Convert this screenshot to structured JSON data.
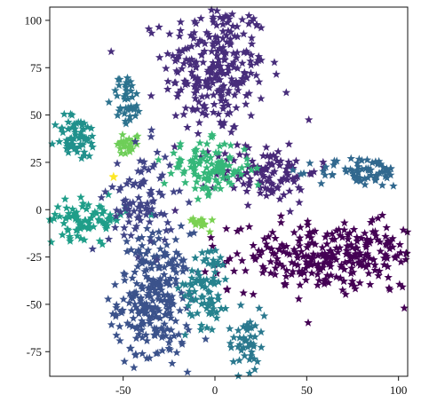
{
  "chart_data": {
    "type": "scatter",
    "title": "",
    "xlabel": "",
    "ylabel": "",
    "xlim": [
      -90,
      105
    ],
    "ylim": [
      -88,
      107
    ],
    "x_ticks": [
      -50,
      0,
      50,
      100
    ],
    "y_ticks": [
      100,
      75,
      50,
      25,
      0,
      -25,
      -50,
      -75
    ],
    "x_tick_labels": [
      "-50",
      "0",
      "50",
      "100"
    ],
    "y_tick_labels": [
      "100",
      "75",
      "50",
      "25",
      "0",
      "-25",
      "-50",
      "-75"
    ],
    "grid": false,
    "legend": "none",
    "marker": "star",
    "series": [
      {
        "color": "#472d7b",
        "center": [
          0,
          75
        ],
        "spread": [
          14,
          18
        ],
        "n": 260
      },
      {
        "color": "#3b528b",
        "center": [
          -33,
          -48
        ],
        "spread": [
          10,
          18
        ],
        "n": 260
      },
      {
        "color": "#440154",
        "center": [
          65,
          -25
        ],
        "spread": [
          28,
          9
        ],
        "n": 300
      },
      {
        "color": "#482878",
        "center": [
          28,
          20
        ],
        "spread": [
          14,
          8
        ],
        "n": 110
      },
      {
        "color": "#31688e",
        "center": [
          80,
          20
        ],
        "spread": [
          12,
          4
        ],
        "n": 70
      },
      {
        "color": "#21918c",
        "center": [
          -75,
          38
        ],
        "spread": [
          6,
          6
        ],
        "n": 60
      },
      {
        "color": "#2c728e",
        "center": [
          -48,
          58
        ],
        "spread": [
          4,
          7
        ],
        "n": 40
      },
      {
        "color": "#26828e",
        "center": [
          -4,
          -40
        ],
        "spread": [
          6,
          11
        ],
        "n": 80
      },
      {
        "color": "#2a788e",
        "center": [
          17,
          -70
        ],
        "spread": [
          5,
          9
        ],
        "n": 50
      },
      {
        "color": "#1f9e89",
        "center": [
          -70,
          -5
        ],
        "spread": [
          11,
          5
        ],
        "n": 90
      },
      {
        "color": "#35b779",
        "center": [
          -4,
          22
        ],
        "spread": [
          12,
          7
        ],
        "n": 110
      },
      {
        "color": "#6ece58",
        "center": [
          -47,
          35
        ],
        "spread": [
          3,
          3
        ],
        "n": 25
      },
      {
        "color": "#7ad151",
        "center": [
          -9,
          -6
        ],
        "spread": [
          3,
          2
        ],
        "n": 15
      },
      {
        "color": "#414487",
        "center": [
          -40,
          5
        ],
        "spread": [
          9,
          14
        ],
        "n": 90
      },
      {
        "color": "#fde725",
        "center": [
          -55,
          17
        ],
        "spread": [
          0.5,
          0.5
        ],
        "n": 2
      }
    ]
  }
}
